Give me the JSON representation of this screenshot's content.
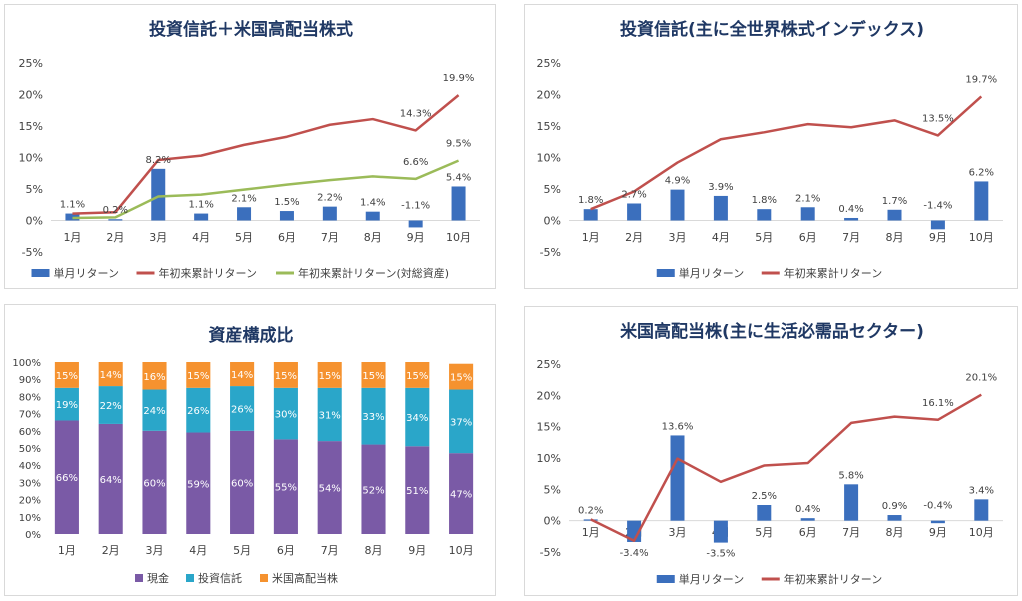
{
  "colors": {
    "bar": "#3b6fbd",
    "line_red": "#c0504d",
    "line_green": "#9bbb59",
    "cash": "#7a5aa6",
    "trust": "#2aa6c9",
    "stock": "#f5922f",
    "title": "#1f3864",
    "axis_text": "#404040",
    "grid": "#d9d9d9"
  },
  "charts": [
    {
      "id": "p1",
      "title": "投資信託＋米国高配当株式",
      "legend": [
        {
          "type": "bar",
          "label": "単月リターン"
        },
        {
          "type": "line_red",
          "label": "年初来累計リターン"
        },
        {
          "type": "line_green",
          "label": "年初来累計リターン(対総資産)"
        }
      ]
    },
    {
      "id": "p2",
      "title": "投資信託(主に全世界株式インデックス)",
      "legend": [
        {
          "type": "bar",
          "label": "単月リターン"
        },
        {
          "type": "line_red",
          "label": "年初来累計リターン"
        }
      ]
    },
    {
      "id": "p3",
      "title": "資産構成比",
      "legend": [
        {
          "type": "cash",
          "label": "現金"
        },
        {
          "type": "trust",
          "label": "投資信託"
        },
        {
          "type": "stock",
          "label": "米国高配当株"
        }
      ]
    },
    {
      "id": "p4",
      "title": "米国高配当株(主に生活必需品セクター)",
      "legend": [
        {
          "type": "bar",
          "label": "単月リターン"
        },
        {
          "type": "line_red",
          "label": "年初来累計リターン"
        }
      ]
    }
  ],
  "chart_data": [
    {
      "type": "bar+line",
      "title": "投資信託＋米国高配当株式",
      "categories": [
        "1月",
        "2月",
        "3月",
        "4月",
        "5月",
        "6月",
        "7月",
        "8月",
        "9月",
        "10月"
      ],
      "yticks": [
        "25%",
        "20%",
        "15%",
        "10%",
        "5%",
        "0%",
        "-5%"
      ],
      "ylim": [
        -5,
        25
      ],
      "series": [
        {
          "name": "単月リターン",
          "kind": "bar",
          "values": [
            1.1,
            0.2,
            8.2,
            1.1,
            2.1,
            1.5,
            2.2,
            1.4,
            -1.1,
            5.4
          ],
          "labels": [
            "1.1%",
            "0.2%",
            "8.2%",
            "1.1%",
            "2.1%",
            "1.5%",
            "2.2%",
            "1.4%",
            "-1.1%",
            "5.4%"
          ]
        },
        {
          "name": "年初来累計リターン",
          "kind": "line",
          "color": "line_red",
          "values": [
            1.1,
            1.3,
            9.6,
            10.3,
            12.0,
            13.3,
            15.2,
            16.1,
            14.3,
            19.9
          ],
          "end_labels": {
            "8": "14.3%",
            "9": "19.9%"
          }
        },
        {
          "name": "年初来累計リターン(対総資産)",
          "kind": "line",
          "color": "line_green",
          "values": [
            0.4,
            0.5,
            3.8,
            4.1,
            4.9,
            5.7,
            6.4,
            7.0,
            6.6,
            9.5
          ],
          "end_labels": {
            "8": "6.6%",
            "9": "9.5%"
          }
        }
      ]
    },
    {
      "type": "bar+line",
      "title": "投資信託(主に全世界株式インデックス)",
      "categories": [
        "1月",
        "2月",
        "3月",
        "4月",
        "5月",
        "6月",
        "7月",
        "8月",
        "9月",
        "10月"
      ],
      "yticks": [
        "25%",
        "20%",
        "15%",
        "10%",
        "5%",
        "0%",
        "-5%"
      ],
      "ylim": [
        -5,
        25
      ],
      "series": [
        {
          "name": "単月リターン",
          "kind": "bar",
          "values": [
            1.8,
            2.7,
            4.9,
            3.9,
            1.8,
            2.1,
            0.4,
            1.7,
            -1.4,
            6.2
          ],
          "labels": [
            "1.8%",
            "2.7%",
            "4.9%",
            "3.9%",
            "1.8%",
            "2.1%",
            "0.4%",
            "1.7%",
            "-1.4%",
            "6.2%"
          ]
        },
        {
          "name": "年初来累計リターン",
          "kind": "line",
          "color": "line_red",
          "values": [
            1.8,
            4.6,
            9.2,
            12.9,
            14.0,
            15.3,
            14.8,
            15.9,
            13.5,
            19.7
          ],
          "end_labels": {
            "8": "13.5%",
            "9": "19.7%"
          }
        }
      ]
    },
    {
      "type": "stacked-bar",
      "title": "資産構成比",
      "categories": [
        "1月",
        "2月",
        "3月",
        "4月",
        "5月",
        "6月",
        "7月",
        "8月",
        "9月",
        "10月"
      ],
      "yticks": [
        "100%",
        "90%",
        "80%",
        "70%",
        "60%",
        "50%",
        "40%",
        "30%",
        "20%",
        "10%",
        "0%"
      ],
      "ylim": [
        0,
        100
      ],
      "series": [
        {
          "name": "現金",
          "color": "cash",
          "values": [
            66,
            64,
            60,
            59,
            60,
            55,
            54,
            52,
            51,
            47
          ],
          "labels": [
            "66%",
            "64%",
            "60%",
            "59%",
            "60%",
            "55%",
            "54%",
            "52%",
            "51%",
            "47%"
          ]
        },
        {
          "name": "投資信託",
          "color": "trust",
          "values": [
            19,
            22,
            24,
            26,
            26,
            30,
            31,
            33,
            34,
            37
          ],
          "labels": [
            "19%",
            "22%",
            "24%",
            "26%",
            "26%",
            "30%",
            "31%",
            "33%",
            "34%",
            "37%"
          ]
        },
        {
          "name": "米国高配当株",
          "color": "stock",
          "values": [
            15,
            14,
            16,
            15,
            14,
            15,
            15,
            15,
            15,
            15
          ],
          "labels": [
            "15%",
            "14%",
            "16%",
            "15%",
            "14%",
            "15%",
            "15%",
            "15%",
            "15%",
            "15%"
          ]
        }
      ]
    },
    {
      "type": "bar+line",
      "title": "米国高配当株(主に生活必需品セクター)",
      "categories": [
        "1月",
        "2月",
        "3月",
        "4月",
        "5月",
        "6月",
        "7月",
        "8月",
        "9月",
        "10月"
      ],
      "yticks": [
        "25%",
        "20%",
        "15%",
        "10%",
        "5%",
        "0%",
        "-5%"
      ],
      "ylim": [
        -5,
        25
      ],
      "series": [
        {
          "name": "単月リターン",
          "kind": "bar",
          "values": [
            0.2,
            -3.4,
            13.6,
            -3.5,
            2.5,
            0.4,
            5.8,
            0.9,
            -0.4,
            3.4
          ],
          "labels": [
            "0.2%",
            "-3.4%",
            "13.6%",
            "-3.5%",
            "2.5%",
            "0.4%",
            "5.8%",
            "0.9%",
            "-0.4%",
            "3.4%"
          ]
        },
        {
          "name": "年初来累計リターン",
          "kind": "line",
          "color": "line_red",
          "values": [
            0.2,
            -3.2,
            9.9,
            6.2,
            8.8,
            9.2,
            15.6,
            16.6,
            16.1,
            20.1
          ],
          "end_labels": {
            "8": "16.1%",
            "9": "20.1%"
          }
        }
      ]
    }
  ]
}
